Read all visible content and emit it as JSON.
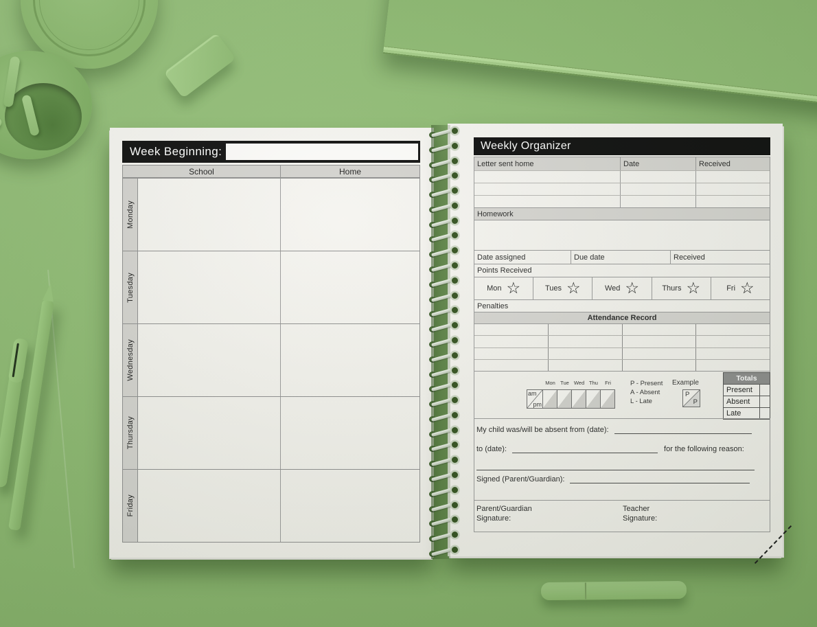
{
  "left_page": {
    "title": "Week Beginning:",
    "title_input_value": "",
    "columns": [
      "School",
      "Home"
    ],
    "days": [
      "Monday",
      "Tuesday",
      "Wednesday",
      "Thursday",
      "Friday"
    ]
  },
  "right_page": {
    "title": "Weekly Organizer",
    "letter_table": {
      "headers": [
        "Letter sent home",
        "Date",
        "Received"
      ]
    },
    "homework_label": "Homework",
    "assignment_headers": [
      "Date assigned",
      "Due date",
      "Received"
    ],
    "points_label": "Points Received",
    "star_days": [
      "Mon",
      "Tues",
      "Wed",
      "Thurs",
      "Fri"
    ],
    "star_icon": "☆",
    "penalties_label": "Penalties",
    "attendance": {
      "title": "Attendance Record",
      "am_label": "am",
      "pm_label": "pm",
      "day_headers": [
        "Mon",
        "Tue",
        "Wed",
        "Thu",
        "Fri"
      ],
      "legend": [
        "P - Present",
        "A - Absent",
        "L - Late"
      ],
      "example_label": "Example",
      "example_am": "P",
      "example_pm": "P",
      "totals_title": "Totals",
      "totals_rows": [
        "Present",
        "Absent",
        "Late"
      ]
    },
    "absence": {
      "line1": "My child was/will be absent from (date):",
      "line2_prefix": "to (date):",
      "line2_suffix": "for the following reason:",
      "signed": "Signed (Parent/Guardian):"
    },
    "signatures": {
      "parent_line1": "Parent/Guardian",
      "parent_line2": "Signature:",
      "teacher_line1": "Teacher",
      "teacher_line2": "Signature:"
    }
  },
  "colors": {
    "desk_green": "#8eba72",
    "bar_black": "#0e0e0e",
    "header_gray": "#d6d5d1",
    "totals_gray": "#8e8e8e",
    "coil_green": "#33511f",
    "paper": "#f4f3ef"
  }
}
